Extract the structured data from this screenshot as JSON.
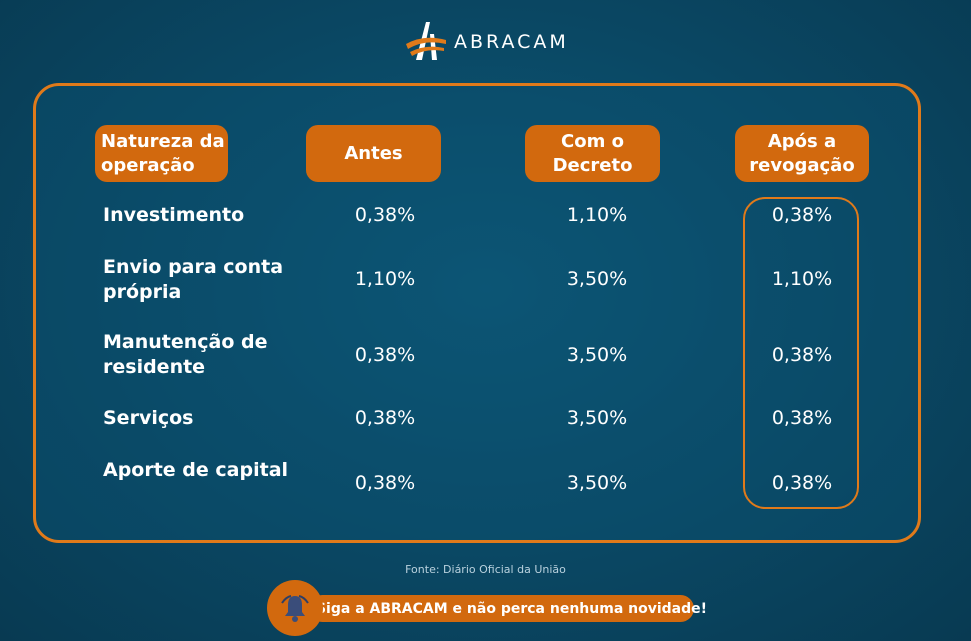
{
  "brand": {
    "name": "ABRACAM",
    "logo_icon": "abracam-logo-icon",
    "accent_color": "#e07a1a"
  },
  "table": {
    "headers": {
      "nature": "Natureza da operação",
      "antes": "Antes",
      "decreto": "Com o Decreto",
      "apos": "Após a revogação"
    },
    "rows": [
      {
        "label": "Investimento",
        "antes": "0,38%",
        "decreto": "1,10%",
        "apos": "0,38%"
      },
      {
        "label": "Envio para conta própria",
        "antes": "1,10%",
        "decreto": "3,50%",
        "apos": "1,10%"
      },
      {
        "label": "Manutenção de residente",
        "antes": "0,38%",
        "decreto": "3,50%",
        "apos": "0,38%"
      },
      {
        "label": "Serviços",
        "antes": "0,38%",
        "decreto": "3,50%",
        "apos": "0,38%"
      },
      {
        "label": "Aporte de capital",
        "antes": "0,38%",
        "decreto": "3,50%",
        "apos": "0,38%"
      }
    ]
  },
  "source": "Fonte: Diário Oficial da União",
  "cta": {
    "text": "Siga a ABRACAM e não perca nenhuma novidade!",
    "icon": "bell-icon"
  },
  "colors": {
    "background": "#0a4763",
    "accent": "#d2690e"
  }
}
